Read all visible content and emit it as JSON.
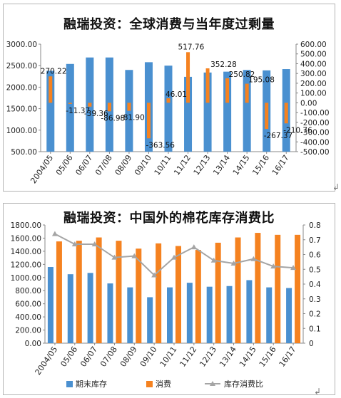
{
  "chart_data": [
    {
      "type": "bar",
      "title": "融瑞投资：全球消费与当年度过剩量",
      "categories": [
        "2004/05",
        "05/06",
        "06/07",
        "07/08",
        "08/09",
        "09/10",
        "10/11",
        "11/12",
        "12/13",
        "13/14",
        "14/15",
        "15/16",
        "16/17"
      ],
      "ylim_left": [
        500,
        3000
      ],
      "ylim_right": [
        -500,
        600
      ],
      "yticks_left": [
        "500.00",
        "1000.00",
        "1500.00",
        "2000.00",
        "2500.00",
        "3000.00"
      ],
      "yticks_right": [
        "-500.00",
        "-400.00",
        "-300.00",
        "-200.00",
        "-100.00",
        "0.00",
        "100.00",
        "200.00",
        "300.00",
        "400.00",
        "500.00",
        "600.00"
      ],
      "series": [
        {
          "axis": "left",
          "color": "#4a90d0",
          "values": [
            2380,
            2540,
            2690,
            2690,
            2400,
            2580,
            2500,
            2240,
            2340,
            2360,
            2400,
            2390,
            2420
          ]
        },
        {
          "axis": "right",
          "color": "#f58220",
          "values": [
            270.22,
            -11.37,
            -39.36,
            -86.98,
            -81.9,
            -363.56,
            46.01,
            517.76,
            352.28,
            250.82,
            195.08,
            -267.37,
            -210.76
          ]
        }
      ],
      "data_labels": [
        "270.22",
        "-11.37",
        "-39.36",
        "-86.98",
        "-81.90",
        "-363.56",
        "46.01",
        "517.76",
        "352.28",
        "250.82",
        "195.08",
        "-267.37",
        "-210.76"
      ],
      "grid": false
    },
    {
      "type": "bar",
      "title": "融瑞投资：中国外的棉花库存消费比",
      "categories": [
        "2004/05",
        "05/06",
        "06/07",
        "07/08",
        "08/09",
        "09/10",
        "10/11",
        "11/12",
        "12/13",
        "13/14",
        "14/15",
        "15/16",
        "16/17"
      ],
      "ylim_left": [
        0,
        1800
      ],
      "ylim_right": [
        0,
        0.8
      ],
      "yticks_left": [
        "0.00",
        "200.00",
        "400.00",
        "600.00",
        "800.00",
        "1000.00",
        "1200.00",
        "1400.00",
        "1600.00",
        "1800.00"
      ],
      "yticks_right": [
        "0",
        "0.1",
        "0.2",
        "0.3",
        "0.4",
        "0.5",
        "0.6",
        "0.7",
        "0.8"
      ],
      "series": [
        {
          "name": "期末库存",
          "axis": "left",
          "color": "#4a90d0",
          "values": [
            1160,
            1050,
            1070,
            910,
            850,
            700,
            850,
            920,
            860,
            870,
            960,
            850,
            840
          ]
        },
        {
          "name": "消费",
          "axis": "left",
          "color": "#f58220",
          "values": [
            1550,
            1560,
            1610,
            1560,
            1440,
            1520,
            1480,
            1420,
            1530,
            1610,
            1680,
            1650,
            1650
          ]
        },
        {
          "name": "库存消费比",
          "axis": "right",
          "type": "line",
          "color": "#a5a5a5",
          "values": [
            0.74,
            0.67,
            0.67,
            0.58,
            0.59,
            0.46,
            0.58,
            0.65,
            0.56,
            0.54,
            0.57,
            0.52,
            0.51
          ]
        }
      ],
      "legend": "bottom",
      "grid": false
    }
  ]
}
